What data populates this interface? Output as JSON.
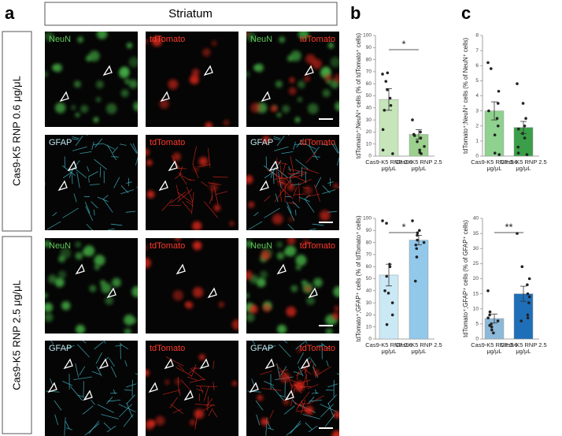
{
  "panels": {
    "a": "a",
    "b": "b",
    "c": "c"
  },
  "panel_a": {
    "header": "Striatum",
    "rows": [
      "Cas9-K5 RNP 0.6 μg/μL",
      "Cas9-K5 RNP 2.5 μg/μL"
    ],
    "images": [
      [
        [
          "NeuN"
        ],
        [
          "tdTomato"
        ],
        [
          "NeuN",
          "tdTomato"
        ]
      ],
      [
        [
          "GFAP"
        ],
        [
          "tdTomato"
        ],
        [
          "GFAP",
          "tdTomato"
        ]
      ],
      [
        [
          "NeuN"
        ],
        [
          "tdTomato"
        ],
        [
          "NeuN",
          "tdTomato"
        ]
      ],
      [
        [
          "GFAP"
        ],
        [
          "tdTomato"
        ],
        [
          "GFAP",
          "tdTomato"
        ]
      ]
    ]
  },
  "chart_data": [
    {
      "type": "bar",
      "ylabel": "tdTomato⁺;NeuN⁺ cells (% of tdTomato⁺ cells)",
      "categories": [
        "Cas9-K5 RNP 0.6 μg/μL",
        "Cas9-K5 RNP 2.5 μg/μL"
      ],
      "values": [
        47,
        18
      ],
      "errors": [
        9,
        4
      ],
      "colors": [
        "#c6e5b9",
        "#9bd08e"
      ],
      "points": [
        [
          68,
          69,
          62,
          55,
          48,
          42,
          38,
          22,
          5,
          2
        ],
        [
          30,
          20,
          18,
          17,
          15,
          12,
          8,
          5,
          3,
          2
        ]
      ],
      "ylim": [
        0,
        100
      ],
      "yticks": [
        0,
        10,
        20,
        30,
        40,
        50,
        60,
        70,
        80,
        90,
        100
      ],
      "significance": "*"
    },
    {
      "type": "bar",
      "ylabel": "tdTomato⁺;GFAP⁺ cells (% of tdTomato⁺ cells)",
      "categories": [
        "Cas9-K5 RNP 0.6 μg/μL",
        "Cas9-K5 RNP 2.5 μg/μL"
      ],
      "values": [
        53,
        82
      ],
      "errors": [
        9,
        4
      ],
      "colors": [
        "#cbe8f5",
        "#92c8ea"
      ],
      "points": [
        [
          98,
          96,
          62,
          60,
          52,
          40,
          38,
          30,
          20,
          12
        ],
        [
          98,
          90,
          88,
          86,
          82,
          80,
          78,
          75,
          68,
          48
        ]
      ],
      "ylim": [
        0,
        100
      ],
      "yticks": [
        0,
        10,
        20,
        30,
        40,
        50,
        60,
        70,
        80,
        90,
        100
      ],
      "significance": "*"
    },
    {
      "type": "bar",
      "ylabel": "tdTomato⁺;NeuN⁺ cells (% of NeuN⁺ cells)",
      "categories": [
        "Cas9-K5 RNP 0.6 μg/μL",
        "Cas9-K5 RNP 2.5 μg/μL"
      ],
      "values": [
        3.0,
        1.9
      ],
      "errors": [
        0.6,
        0.4
      ],
      "colors": [
        "#8fd18f",
        "#3a9f48"
      ],
      "points": [
        [
          6.2,
          5.8,
          4.3,
          3.5,
          3.0,
          2.5,
          2.0,
          1.4,
          0.2,
          0.1
        ],
        [
          4.8,
          3.5,
          2.5,
          2.0,
          1.8,
          1.5,
          1.2,
          0.6,
          0.2,
          0.1
        ]
      ],
      "ylim": [
        0,
        8
      ],
      "yticks": [
        0,
        1,
        2,
        3,
        4,
        5,
        6,
        7,
        8
      ]
    },
    {
      "type": "bar",
      "ylabel": "tdTomato⁺;GFAP⁺ cells (% of GFAP⁺ cells)",
      "categories": [
        "Cas9-K5 RNP 0.6 μg/μL",
        "Cas9-K5 RNP 2.5 μg/μL"
      ],
      "values": [
        6.8,
        15
      ],
      "errors": [
        1.5,
        2.5
      ],
      "colors": [
        "#8cb9d9",
        "#1f6fb8"
      ],
      "points": [
        [
          16,
          9,
          8,
          7,
          6,
          5,
          4.5,
          4,
          3,
          2
        ],
        [
          35,
          24,
          20,
          18,
          15,
          14,
          12,
          8,
          7,
          6
        ]
      ],
      "ylim": [
        0,
        40
      ],
      "yticks": [
        0,
        5,
        10,
        15,
        20,
        25,
        30,
        35,
        40
      ],
      "significance": "**"
    }
  ]
}
